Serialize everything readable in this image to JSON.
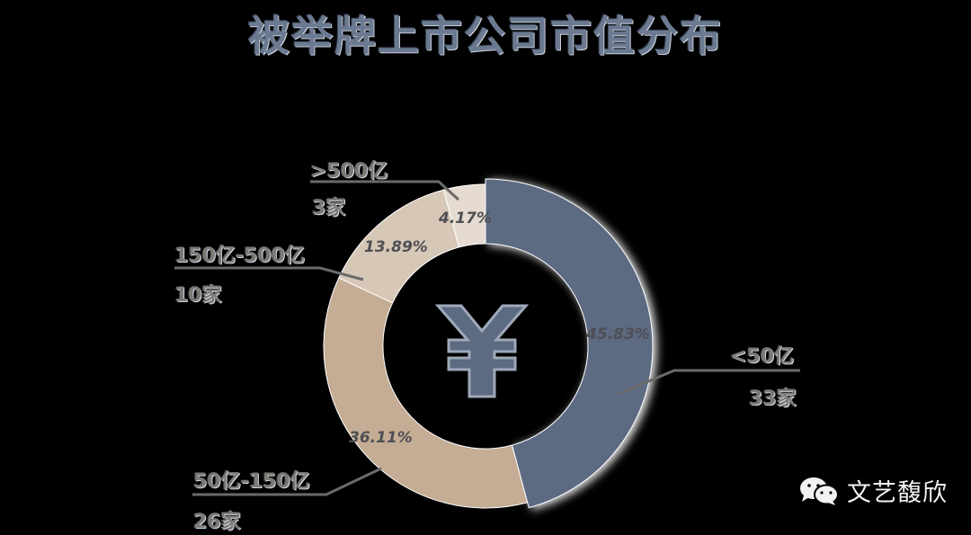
{
  "title": "被举牌上市公司市值分布",
  "watermark": {
    "icon": "wechat-icon",
    "text": "文艺馥欣"
  },
  "center_icon": "yuan-icon",
  "colors": {
    "lt50": "#5c6b82",
    "b50_150": "#c4ad94",
    "b150_500": "#d6c7b6",
    "gt500": "#e5dbd0",
    "leader": "#6a6a6a"
  },
  "chart_data": {
    "type": "pie",
    "variant": "donut",
    "title": "被举牌上市公司市值分布",
    "categories": [
      "<50亿",
      "50亿-150亿",
      "150亿-500亿",
      ">500亿"
    ],
    "counts": [
      33,
      26,
      10,
      3
    ],
    "count_labels": [
      "33家",
      "26家",
      "10家",
      "3家"
    ],
    "values": [
      45.83,
      36.11,
      13.89,
      4.17
    ],
    "value_labels": [
      "45.83%",
      "36.11%",
      "13.89%",
      "4.17%"
    ],
    "unit": "%",
    "start_angle": "12 o'clock, clockwise",
    "exploded": [
      "<50亿"
    ],
    "legend": "none (leader-line labels)"
  },
  "labels": {
    "lt50": {
      "range": "<50亿",
      "count": "33家",
      "pct": "45.83%"
    },
    "b50_150": {
      "range": "50亿-150亿",
      "count": "26家",
      "pct": "36.11%"
    },
    "b150_500": {
      "range": "150亿-500亿",
      "count": "10家",
      "pct": "13.89%"
    },
    "gt500": {
      "range": ">500亿",
      "count": "3家",
      "pct": "4.17%"
    }
  }
}
